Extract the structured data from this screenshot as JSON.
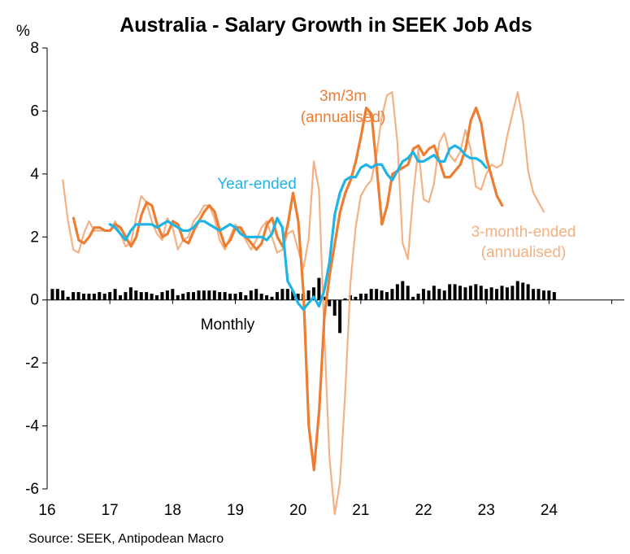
{
  "chart_data": {
    "type": "line",
    "title": "Australia - Salary Growth in SEEK Job Ads",
    "ylabel": "%",
    "xlabel": "",
    "ylim": [
      -6,
      8
    ],
    "xlim": [
      2016,
      2025.2
    ],
    "y_ticks": [
      "8",
      "6",
      "4",
      "2",
      "0",
      "-2",
      "-4",
      "-6"
    ],
    "x_ticks": [
      "16",
      "17",
      "18",
      "19",
      "20",
      "21",
      "22",
      "23",
      "24"
    ],
    "source": "Source: SEEK, Antipodean Macro",
    "annotations": {
      "three_m": [
        "3m/3m",
        "(annualised)"
      ],
      "year_ended": "Year-ended",
      "three_month_ended": [
        "3-month-ended",
        "(annualised)"
      ],
      "monthly": "Monthly"
    },
    "colors": {
      "year_ended": "#1EB4E6",
      "three_m": "#ED7D31",
      "three_month_ended": "#F4B183",
      "monthly": "#000000",
      "axis": "#000000"
    },
    "series": [
      {
        "name": "Monthly",
        "type": "bar",
        "start": 2016.083,
        "values": [
          0.35,
          0.35,
          0.3,
          0.1,
          0.25,
          0.25,
          0.2,
          0.2,
          0.2,
          0.25,
          0.2,
          0.25,
          0.35,
          0.15,
          0.25,
          0.4,
          0.3,
          0.25,
          0.25,
          0.2,
          0.15,
          0.25,
          0.3,
          0.35,
          0.15,
          0.2,
          0.25,
          0.25,
          0.3,
          0.3,
          0.3,
          0.3,
          0.25,
          0.25,
          0.2,
          0.2,
          0.25,
          0.15,
          0.3,
          0.35,
          0.2,
          0.15,
          0.1,
          0.25,
          0.35,
          0.35,
          0.3,
          0.2,
          0.2,
          0.3,
          0.4,
          0.7,
          0.1,
          -0.2,
          -0.5,
          -1.05,
          0.05,
          0.15,
          0.1,
          0.2,
          0.2,
          0.35,
          0.35,
          0.3,
          0.25,
          0.35,
          0.5,
          0.6,
          0.45,
          0.1,
          0.2,
          0.35,
          0.3,
          0.45,
          0.35,
          0.3,
          0.5,
          0.5,
          0.45,
          0.4,
          0.45,
          0.5,
          0.45,
          0.35,
          0.4,
          0.35,
          0.45,
          0.4,
          0.45,
          0.6,
          0.55,
          0.5,
          0.35,
          0.35,
          0.3,
          0.3,
          0.25
        ]
      },
      {
        "name": "3-month-ended (annualised)",
        "type": "line",
        "start": 2016.25,
        "values": [
          3.8,
          2.5,
          1.6,
          1.5,
          2.1,
          2.5,
          2.2,
          2.2,
          2.2,
          2.2,
          2.5,
          2.1,
          1.7,
          1.8,
          2.6,
          3.3,
          3.1,
          2.5,
          2.1,
          1.9,
          2.6,
          2.3,
          1.6,
          1.9,
          2.0,
          2.5,
          2.7,
          3.0,
          3.0,
          2.6,
          1.9,
          1.6,
          2.0,
          2.4,
          2.2,
          1.9,
          1.6,
          1.9,
          2.3,
          2.5,
          2.0,
          1.5,
          1.6,
          2.1,
          2.2,
          1.6,
          1.0,
          1.9,
          4.4,
          3.5,
          -1.0,
          -5.0,
          -6.8,
          -5.8,
          -3.0,
          0.5,
          2.3,
          3.3,
          3.6,
          3.8,
          4.6,
          5.8,
          6.5,
          6.6,
          5.0,
          1.8,
          1.3,
          3.3,
          4.8,
          3.2,
          3.1,
          3.7,
          5.0,
          5.3,
          4.6,
          4.4,
          4.7,
          5.4,
          4.8,
          3.6,
          3.5,
          4.0,
          4.3,
          4.2,
          4.3,
          5.2,
          5.9,
          6.6,
          5.7,
          4.1,
          3.4,
          3.1,
          2.8
        ]
      },
      {
        "name": "3m/3m (annualised)",
        "type": "line",
        "start": 2016.42,
        "values": [
          2.6,
          1.9,
          1.8,
          2.0,
          2.3,
          2.3,
          2.2,
          2.2,
          2.4,
          2.3,
          2.0,
          1.7,
          2.0,
          2.7,
          3.1,
          3.0,
          2.4,
          2.0,
          2.1,
          2.5,
          2.4,
          1.9,
          1.8,
          2.2,
          2.5,
          2.8,
          3.0,
          2.8,
          2.2,
          1.7,
          1.9,
          2.3,
          2.3,
          2.0,
          1.8,
          1.6,
          1.8,
          2.4,
          2.6,
          2.0,
          1.7,
          2.4,
          3.4,
          2.5,
          0.2,
          -4.0,
          -5.4,
          -3.5,
          -0.5,
          0.8,
          1.8,
          2.8,
          3.4,
          3.8,
          4.4,
          5.2,
          6.1,
          5.9,
          4.2,
          2.4,
          3.0,
          4.0,
          4.1,
          4.2,
          4.3,
          4.8,
          4.9,
          4.6,
          4.8,
          4.9,
          4.4,
          3.9,
          3.9,
          4.1,
          4.3,
          4.8,
          5.7,
          6.1,
          5.6,
          4.5,
          3.9,
          3.3,
          3.0
        ]
      },
      {
        "name": "Year-ended",
        "type": "line",
        "start": 2017.0,
        "values": [
          2.4,
          2.3,
          2.1,
          1.9,
          2.2,
          2.4,
          2.4,
          2.4,
          2.4,
          2.3,
          2.4,
          2.5,
          2.4,
          2.3,
          2.2,
          2.2,
          2.3,
          2.5,
          2.5,
          2.4,
          2.3,
          2.2,
          2.3,
          2.4,
          2.3,
          2.1,
          2.0,
          2.0,
          2.0,
          2.0,
          1.9,
          2.1,
          2.6,
          2.3,
          0.6,
          0.3,
          -0.1,
          -0.3,
          -0.1,
          0.1,
          -0.2,
          0.3,
          1.2,
          2.7,
          3.4,
          3.8,
          3.9,
          3.9,
          4.2,
          4.3,
          4.2,
          4.3,
          4.3,
          4.0,
          3.8,
          4.1,
          4.4,
          4.5,
          4.7,
          4.4,
          4.4,
          4.5,
          4.6,
          4.4,
          4.4,
          4.8,
          4.9,
          4.8,
          4.6,
          4.5,
          4.5,
          4.4,
          4.2
        ]
      }
    ]
  }
}
